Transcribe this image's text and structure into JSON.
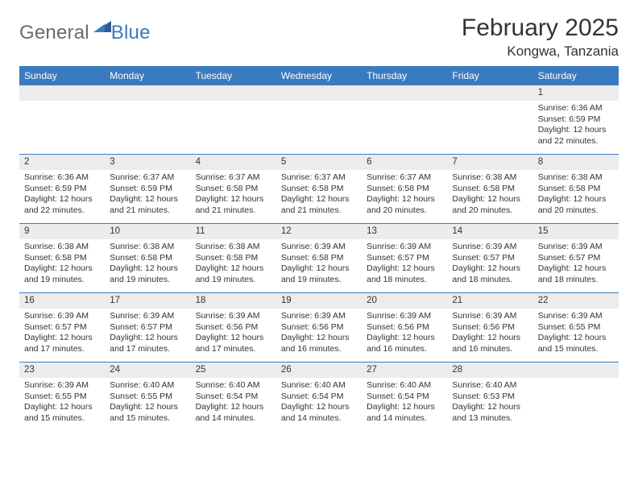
{
  "logo": {
    "text1": "General",
    "text2": "Blue"
  },
  "title": "February 2025",
  "location": "Kongwa, Tanzania",
  "colors": {
    "header_bg": "#3a7bbf",
    "header_text": "#ffffff",
    "daynum_bg": "#ececec",
    "border": "#3a7bbf",
    "body_text": "#333333",
    "logo_gray": "#6b6b6b",
    "logo_blue": "#3a7bbf",
    "background": "#ffffff"
  },
  "typography": {
    "title_fontsize": 30,
    "location_fontsize": 17,
    "dayheader_fontsize": 12,
    "daynum_fontsize": 11.5,
    "cell_fontsize": 10.5,
    "logo_fontsize": 24
  },
  "day_headers": [
    "Sunday",
    "Monday",
    "Tuesday",
    "Wednesday",
    "Thursday",
    "Friday",
    "Saturday"
  ],
  "weeks": [
    [
      null,
      null,
      null,
      null,
      null,
      null,
      {
        "n": "1",
        "sr": "Sunrise: 6:36 AM",
        "ss": "Sunset: 6:59 PM",
        "dl": "Daylight: 12 hours and 22 minutes."
      }
    ],
    [
      {
        "n": "2",
        "sr": "Sunrise: 6:36 AM",
        "ss": "Sunset: 6:59 PM",
        "dl": "Daylight: 12 hours and 22 minutes."
      },
      {
        "n": "3",
        "sr": "Sunrise: 6:37 AM",
        "ss": "Sunset: 6:59 PM",
        "dl": "Daylight: 12 hours and 21 minutes."
      },
      {
        "n": "4",
        "sr": "Sunrise: 6:37 AM",
        "ss": "Sunset: 6:58 PM",
        "dl": "Daylight: 12 hours and 21 minutes."
      },
      {
        "n": "5",
        "sr": "Sunrise: 6:37 AM",
        "ss": "Sunset: 6:58 PM",
        "dl": "Daylight: 12 hours and 21 minutes."
      },
      {
        "n": "6",
        "sr": "Sunrise: 6:37 AM",
        "ss": "Sunset: 6:58 PM",
        "dl": "Daylight: 12 hours and 20 minutes."
      },
      {
        "n": "7",
        "sr": "Sunrise: 6:38 AM",
        "ss": "Sunset: 6:58 PM",
        "dl": "Daylight: 12 hours and 20 minutes."
      },
      {
        "n": "8",
        "sr": "Sunrise: 6:38 AM",
        "ss": "Sunset: 6:58 PM",
        "dl": "Daylight: 12 hours and 20 minutes."
      }
    ],
    [
      {
        "n": "9",
        "sr": "Sunrise: 6:38 AM",
        "ss": "Sunset: 6:58 PM",
        "dl": "Daylight: 12 hours and 19 minutes."
      },
      {
        "n": "10",
        "sr": "Sunrise: 6:38 AM",
        "ss": "Sunset: 6:58 PM",
        "dl": "Daylight: 12 hours and 19 minutes."
      },
      {
        "n": "11",
        "sr": "Sunrise: 6:38 AM",
        "ss": "Sunset: 6:58 PM",
        "dl": "Daylight: 12 hours and 19 minutes."
      },
      {
        "n": "12",
        "sr": "Sunrise: 6:39 AM",
        "ss": "Sunset: 6:58 PM",
        "dl": "Daylight: 12 hours and 19 minutes."
      },
      {
        "n": "13",
        "sr": "Sunrise: 6:39 AM",
        "ss": "Sunset: 6:57 PM",
        "dl": "Daylight: 12 hours and 18 minutes."
      },
      {
        "n": "14",
        "sr": "Sunrise: 6:39 AM",
        "ss": "Sunset: 6:57 PM",
        "dl": "Daylight: 12 hours and 18 minutes."
      },
      {
        "n": "15",
        "sr": "Sunrise: 6:39 AM",
        "ss": "Sunset: 6:57 PM",
        "dl": "Daylight: 12 hours and 18 minutes."
      }
    ],
    [
      {
        "n": "16",
        "sr": "Sunrise: 6:39 AM",
        "ss": "Sunset: 6:57 PM",
        "dl": "Daylight: 12 hours and 17 minutes."
      },
      {
        "n": "17",
        "sr": "Sunrise: 6:39 AM",
        "ss": "Sunset: 6:57 PM",
        "dl": "Daylight: 12 hours and 17 minutes."
      },
      {
        "n": "18",
        "sr": "Sunrise: 6:39 AM",
        "ss": "Sunset: 6:56 PM",
        "dl": "Daylight: 12 hours and 17 minutes."
      },
      {
        "n": "19",
        "sr": "Sunrise: 6:39 AM",
        "ss": "Sunset: 6:56 PM",
        "dl": "Daylight: 12 hours and 16 minutes."
      },
      {
        "n": "20",
        "sr": "Sunrise: 6:39 AM",
        "ss": "Sunset: 6:56 PM",
        "dl": "Daylight: 12 hours and 16 minutes."
      },
      {
        "n": "21",
        "sr": "Sunrise: 6:39 AM",
        "ss": "Sunset: 6:56 PM",
        "dl": "Daylight: 12 hours and 16 minutes."
      },
      {
        "n": "22",
        "sr": "Sunrise: 6:39 AM",
        "ss": "Sunset: 6:55 PM",
        "dl": "Daylight: 12 hours and 15 minutes."
      }
    ],
    [
      {
        "n": "23",
        "sr": "Sunrise: 6:39 AM",
        "ss": "Sunset: 6:55 PM",
        "dl": "Daylight: 12 hours and 15 minutes."
      },
      {
        "n": "24",
        "sr": "Sunrise: 6:40 AM",
        "ss": "Sunset: 6:55 PM",
        "dl": "Daylight: 12 hours and 15 minutes."
      },
      {
        "n": "25",
        "sr": "Sunrise: 6:40 AM",
        "ss": "Sunset: 6:54 PM",
        "dl": "Daylight: 12 hours and 14 minutes."
      },
      {
        "n": "26",
        "sr": "Sunrise: 6:40 AM",
        "ss": "Sunset: 6:54 PM",
        "dl": "Daylight: 12 hours and 14 minutes."
      },
      {
        "n": "27",
        "sr": "Sunrise: 6:40 AM",
        "ss": "Sunset: 6:54 PM",
        "dl": "Daylight: 12 hours and 14 minutes."
      },
      {
        "n": "28",
        "sr": "Sunrise: 6:40 AM",
        "ss": "Sunset: 6:53 PM",
        "dl": "Daylight: 12 hours and 13 minutes."
      },
      null
    ]
  ]
}
